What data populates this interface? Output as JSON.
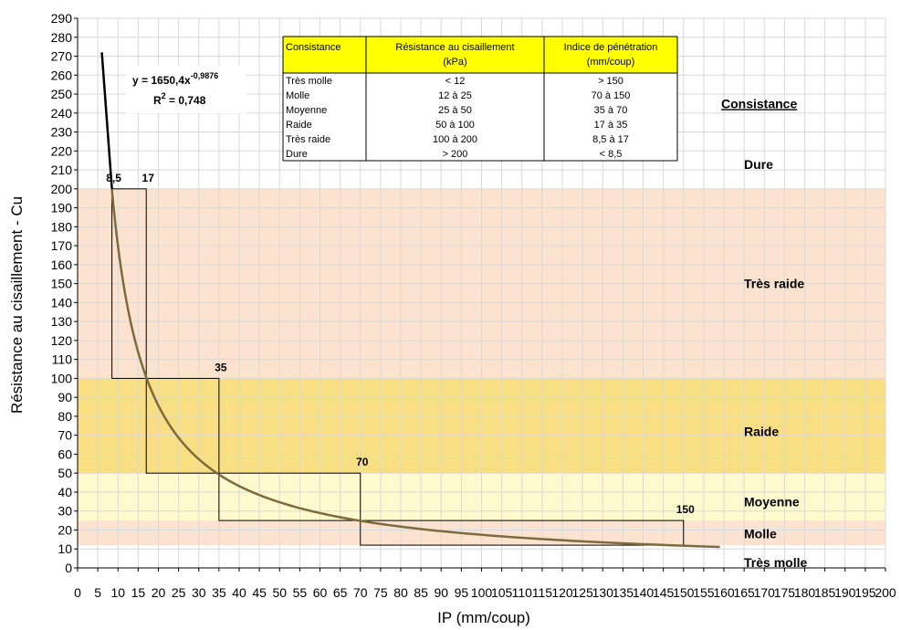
{
  "chart_data": {
    "type": "line",
    "xlabel": "IP (mm/coup)",
    "ylabel": "Résistance au cisaillement - Cu",
    "xlim": [
      0,
      200
    ],
    "ylim": [
      0,
      290
    ],
    "x_ticks": [
      0,
      5,
      10,
      15,
      20,
      25,
      30,
      35,
      40,
      45,
      50,
      55,
      60,
      65,
      70,
      75,
      80,
      85,
      90,
      95,
      100,
      105,
      110,
      115,
      120,
      125,
      130,
      135,
      140,
      145,
      150,
      155,
      160,
      165,
      170,
      175,
      180,
      185,
      190,
      195,
      200
    ],
    "y_ticks": [
      0,
      10,
      20,
      30,
      40,
      50,
      60,
      70,
      80,
      90,
      100,
      110,
      120,
      130,
      140,
      150,
      160,
      170,
      180,
      190,
      200,
      210,
      220,
      230,
      240,
      250,
      260,
      270,
      280,
      290
    ],
    "grid": true,
    "zones": [
      {
        "label": "Très molle",
        "y0": 0,
        "y1": 12,
        "color": "#ffffff"
      },
      {
        "label": "Molle",
        "y0": 12,
        "y1": 25,
        "color": "#fbe3cf"
      },
      {
        "label": "Moyenne",
        "y0": 25,
        "y1": 50,
        "color": "#fffacd"
      },
      {
        "label": "Raide",
        "y0": 50,
        "y1": 100,
        "color": "#f9df83"
      },
      {
        "label": "Très raide",
        "y0": 100,
        "y1": 200,
        "color": "#fbe3cf"
      },
      {
        "label": "Dure",
        "y0": 200,
        "y1": 290,
        "color": "#ffffff"
      }
    ],
    "zone_heading": "Consistance",
    "steps": [
      {
        "x0": 8.5,
        "x1": 17,
        "y0": 100,
        "y1": 200
      },
      {
        "x0": 17,
        "x1": 35,
        "y0": 50,
        "y1": 100
      },
      {
        "x0": 35,
        "x1": 70,
        "y0": 25,
        "y1": 50
      },
      {
        "x0": 70,
        "x1": 150,
        "y0": 12,
        "y1": 25
      }
    ],
    "annotations": [
      {
        "text": "8,5",
        "x": 8.5,
        "y": 200
      },
      {
        "text": "17",
        "x": 17,
        "y": 200
      },
      {
        "text": "35",
        "x": 35,
        "y": 100
      },
      {
        "text": "70",
        "x": 70,
        "y": 50
      },
      {
        "text": "150",
        "x": 150,
        "y": 25
      }
    ],
    "fit": {
      "equation_prefix": "y = 1650,4x",
      "equation_exponent": "-0,9876",
      "r2_prefix": "R",
      "r2_sup": "2",
      "r2_value": " = 0,748",
      "a": 1650.4,
      "b": -0.9876,
      "x_range": [
        8.5,
        159
      ],
      "color": "#7d6a3d"
    },
    "trend_black": {
      "x": [
        6,
        8.5
      ],
      "y": [
        272,
        200
      ]
    }
  },
  "table": {
    "headers": [
      "Consistance",
      "Résistance au cisaillement (kPa)",
      "Indice de pénétration (mm/coup)"
    ],
    "header_color": "#ffff00",
    "rows": [
      [
        "Très molle",
        "< 12",
        "> 150"
      ],
      [
        "Molle",
        "12 à 25",
        "70 à 150"
      ],
      [
        "Moyenne",
        "25 à 50",
        "35 à 70"
      ],
      [
        "Raide",
        "50 à 100",
        "17 à 35"
      ],
      [
        "Très raide",
        "100 à 200",
        "8,5 à 17"
      ],
      [
        "Dure",
        "> 200",
        "< 8,5"
      ]
    ]
  }
}
